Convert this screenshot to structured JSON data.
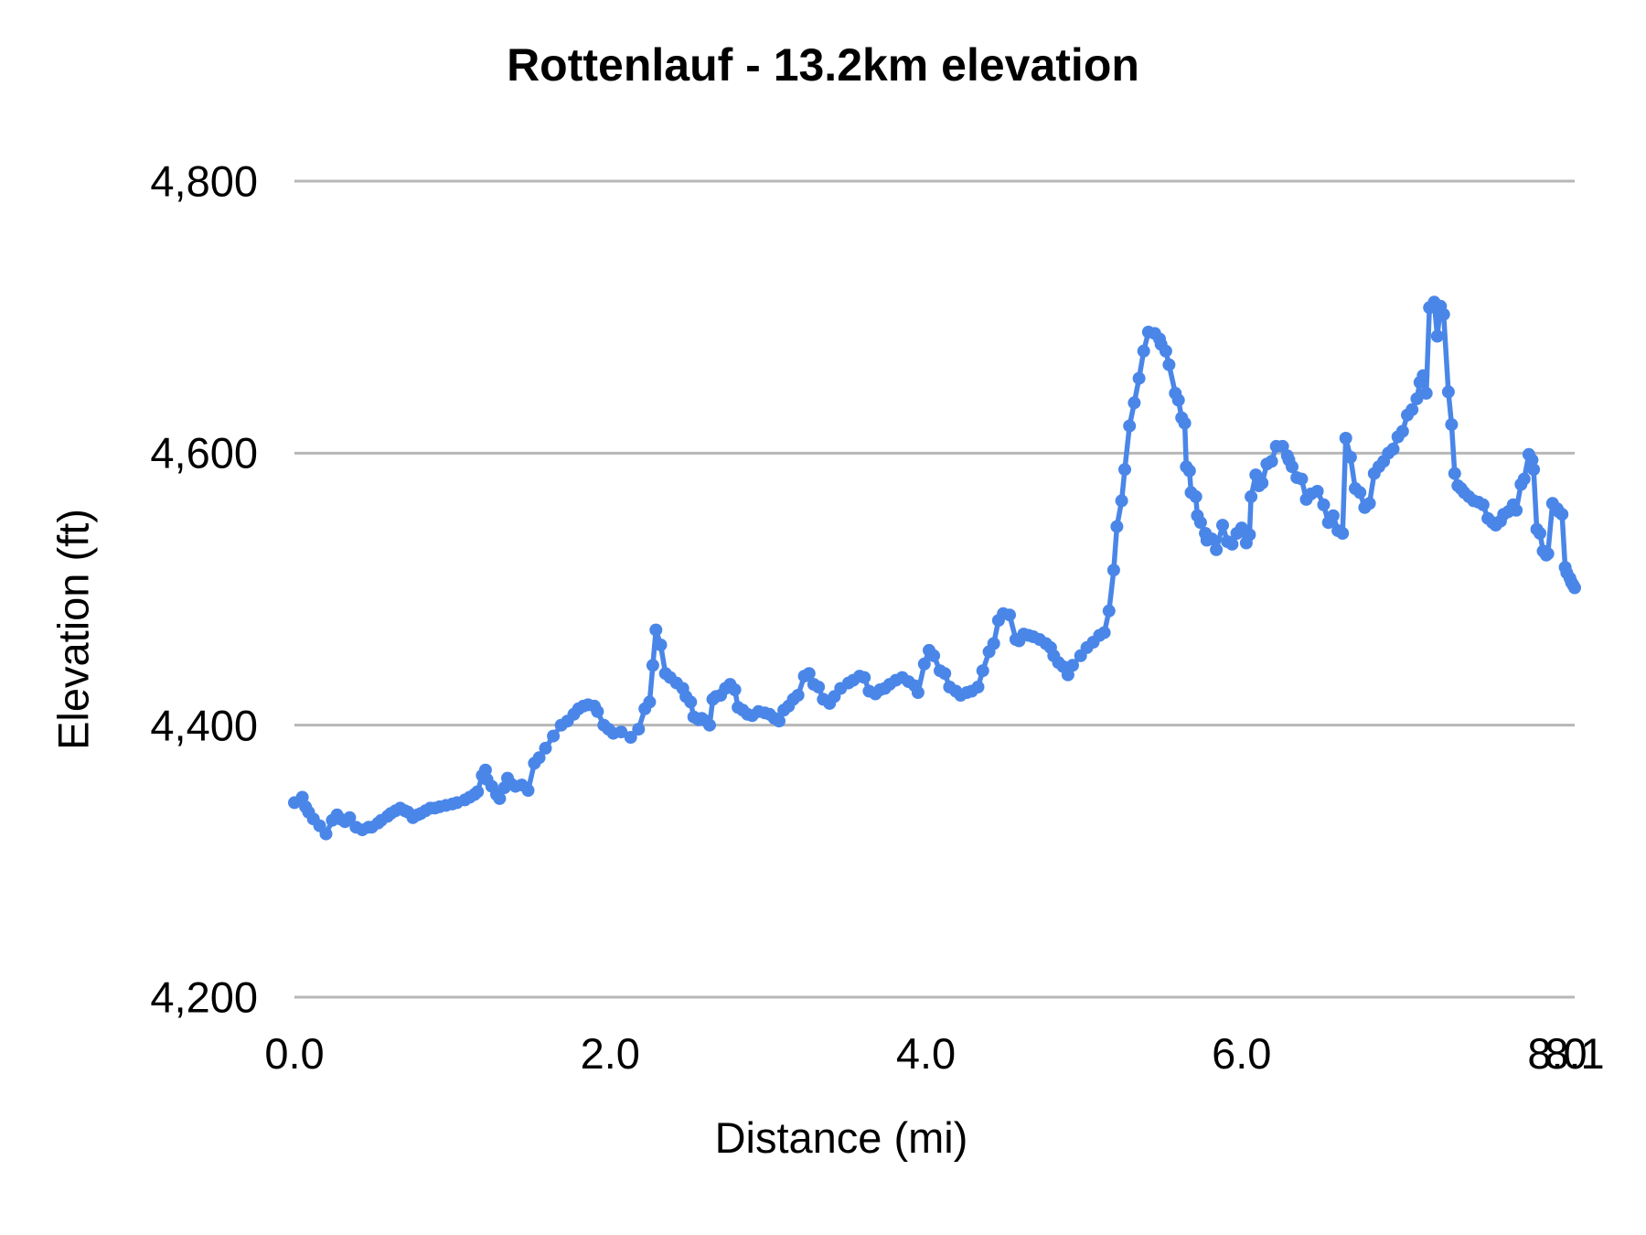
{
  "title": "Rottenlauf - 13.2km elevation",
  "colors": {
    "series": "#4a86e8",
    "gridline": "#b7b7b7",
    "text": "#000000",
    "background": "#ffffff"
  },
  "chart_data": {
    "type": "line",
    "title": "Rottenlauf - 13.2km elevation",
    "xlabel": "Distance (mi)",
    "ylabel": "Elevation (ft)",
    "xlim": [
      0,
      8.11
    ],
    "ylim": [
      4200,
      4800
    ],
    "grid": "horizontal-only",
    "legend": "none",
    "marker": "circle",
    "series_color": "#4a86e8",
    "x_ticks": [
      {
        "v": 0,
        "label": "0.0"
      },
      {
        "v": 2,
        "label": "2.0"
      },
      {
        "v": 4,
        "label": "4.0"
      },
      {
        "v": 6,
        "label": "6.0"
      },
      {
        "v": 8,
        "label": "8.0"
      },
      {
        "v": 8.11,
        "label": "8.1"
      }
    ],
    "y_ticks": [
      {
        "v": 4200,
        "label": "4,200"
      },
      {
        "v": 4400,
        "label": "4,400"
      },
      {
        "v": 4600,
        "label": "4,600"
      },
      {
        "v": 4800,
        "label": "4,800"
      }
    ],
    "series": [
      {
        "name": "Elevation",
        "x": [
          0.0,
          0.05,
          0.07,
          0.09,
          0.12,
          0.16,
          0.2,
          0.24,
          0.27,
          0.29,
          0.32,
          0.35,
          0.39,
          0.43,
          0.47,
          0.49,
          0.53,
          0.55,
          0.59,
          0.61,
          0.64,
          0.67,
          0.7,
          0.72,
          0.75,
          0.78,
          0.8,
          0.83,
          0.86,
          0.89,
          0.92,
          0.96,
          1.0,
          1.03,
          1.08,
          1.11,
          1.14,
          1.16,
          1.19,
          1.21,
          1.22,
          1.25,
          1.28,
          1.3,
          1.33,
          1.35,
          1.37,
          1.4,
          1.44,
          1.48,
          1.52,
          1.55,
          1.59,
          1.64,
          1.69,
          1.73,
          1.77,
          1.8,
          1.83,
          1.86,
          1.9,
          1.92,
          1.96,
          1.99,
          2.02,
          2.07,
          2.13,
          2.18,
          2.22,
          2.25,
          2.27,
          2.29,
          2.32,
          2.35,
          2.38,
          2.42,
          2.46,
          2.48,
          2.51,
          2.53,
          2.56,
          2.58,
          2.61,
          2.63,
          2.65,
          2.67,
          2.7,
          2.73,
          2.76,
          2.79,
          2.81,
          2.84,
          2.87,
          2.9,
          2.94,
          2.98,
          3.01,
          3.04,
          3.07,
          3.1,
          3.13,
          3.16,
          3.19,
          3.23,
          3.26,
          3.29,
          3.32,
          3.35,
          3.39,
          3.42,
          3.46,
          3.51,
          3.54,
          3.58,
          3.61,
          3.64,
          3.68,
          3.71,
          3.74,
          3.77,
          3.81,
          3.85,
          3.89,
          3.93,
          3.95,
          3.99,
          4.02,
          4.05,
          4.09,
          4.12,
          4.15,
          4.19,
          4.22,
          4.26,
          4.29,
          4.33,
          4.36,
          4.4,
          4.43,
          4.46,
          4.49,
          4.53,
          4.57,
          4.59,
          4.62,
          4.65,
          4.68,
          4.72,
          4.76,
          4.79,
          4.81,
          4.84,
          4.87,
          4.9,
          4.93,
          4.98,
          5.02,
          5.06,
          5.1,
          5.13,
          5.16,
          5.19,
          5.21,
          5.24,
          5.26,
          5.29,
          5.32,
          5.35,
          5.38,
          5.41,
          5.45,
          5.48,
          5.49,
          5.52,
          5.54,
          5.58,
          5.6,
          5.62,
          5.64,
          5.65,
          5.67,
          5.68,
          5.71,
          5.72,
          5.74,
          5.77,
          5.78,
          5.81,
          5.84,
          5.88,
          5.91,
          5.94,
          5.97,
          6.0,
          6.03,
          6.05,
          6.06,
          6.09,
          6.11,
          6.13,
          6.16,
          6.19,
          6.22,
          6.26,
          6.29,
          6.3,
          6.32,
          6.35,
          6.38,
          6.41,
          6.44,
          6.48,
          6.52,
          6.55,
          6.58,
          6.61,
          6.64,
          6.66,
          6.69,
          6.72,
          6.75,
          6.78,
          6.81,
          6.84,
          6.87,
          6.9,
          6.93,
          6.96,
          6.99,
          7.02,
          7.05,
          7.08,
          7.11,
          7.13,
          7.15,
          7.17,
          7.19,
          7.22,
          7.24,
          7.26,
          7.28,
          7.31,
          7.33,
          7.35,
          7.37,
          7.39,
          7.41,
          7.44,
          7.47,
          7.5,
          7.53,
          7.56,
          7.59,
          7.61,
          7.64,
          7.66,
          7.69,
          7.72,
          7.74,
          7.77,
          7.79,
          7.82,
          7.84,
          7.85,
          7.87,
          7.89,
          7.91,
          7.93,
          7.94,
          7.97,
          8.0,
          8.01,
          8.03,
          8.05,
          8.06,
          8.08,
          8.09,
          8.1,
          8.11
        ],
        "y": [
          4343,
          4347,
          4340,
          4336,
          4331,
          4326,
          4320,
          4330,
          4334,
          4331,
          4329,
          4332,
          4325,
          4323,
          4325,
          4325,
          4328,
          4330,
          4333,
          4335,
          4337,
          4339,
          4337,
          4336,
          4332,
          4334,
          4335,
          4337,
          4339,
          4339,
          4340,
          4341,
          4342,
          4343,
          4345,
          4347,
          4349,
          4351,
          4363,
          4367,
          4360,
          4355,
          4349,
          4346,
          4354,
          4361,
          4357,
          4355,
          4356,
          4352,
          4372,
          4376,
          4383,
          4392,
          4400,
          4403,
          4408,
          4412,
          4414,
          4415,
          4414,
          4410,
          4400,
          4397,
          4394,
          4395,
          4391,
          4397,
          4412,
          4417,
          4444,
          4470,
          4459,
          4438,
          4435,
          4431,
          4427,
          4421,
          4417,
          4406,
          4404,
          4405,
          4403,
          4400,
          4419,
          4421,
          4422,
          4427,
          4430,
          4426,
          4413,
          4411,
          4408,
          4407,
          4410,
          4409,
          4408,
          4405,
          4403,
          4411,
          4414,
          4419,
          4422,
          4436,
          4438,
          4430,
          4428,
          4419,
          4416,
          4421,
          4427,
          4431,
          4433,
          4436,
          4435,
          4425,
          4423,
          4426,
          4427,
          4430,
          4433,
          4435,
          4432,
          4429,
          4424,
          4445,
          4455,
          4451,
          4440,
          4438,
          4428,
          4425,
          4422,
          4424,
          4425,
          4428,
          4440,
          4454,
          4460,
          4477,
          4482,
          4481,
          4463,
          4462,
          4467,
          4466,
          4465,
          4463,
          4460,
          4457,
          4451,
          4446,
          4443,
          4437,
          4444,
          4451,
          4457,
          4461,
          4466,
          4468,
          4484,
          4514,
          4546,
          4565,
          4588,
          4620,
          4637,
          4655,
          4675,
          4689,
          4688,
          4684,
          4680,
          4675,
          4665,
          4644,
          4639,
          4626,
          4622,
          4590,
          4587,
          4571,
          4568,
          4554,
          4549,
          4541,
          4536,
          4537,
          4529,
          4547,
          4535,
          4533,
          4541,
          4545,
          4534,
          4540,
          4568,
          4584,
          4576,
          4578,
          4592,
          4594,
          4605,
          4605,
          4598,
          4595,
          4590,
          4582,
          4581,
          4566,
          4570,
          4572,
          4562,
          4549,
          4554,
          4543,
          4541,
          4611,
          4597,
          4574,
          4571,
          4560,
          4563,
          4585,
          4590,
          4594,
          4600,
          4603,
          4612,
          4616,
          4628,
          4632,
          4640,
          4652,
          4657,
          4644,
          4707,
          4711,
          4686,
          4708,
          4702,
          4645,
          4621,
          4585,
          4576,
          4574,
          4571,
          4568,
          4565,
          4564,
          4562,
          4552,
          4549,
          4547,
          4550,
          4555,
          4557,
          4562,
          4558,
          4577,
          4581,
          4599,
          4595,
          4588,
          4544,
          4541,
          4528,
          4525,
          4526,
          4563,
          4559,
          4557,
          4555,
          4516,
          4512,
          4508,
          4505,
          4503,
          4501
        ]
      }
    ]
  }
}
